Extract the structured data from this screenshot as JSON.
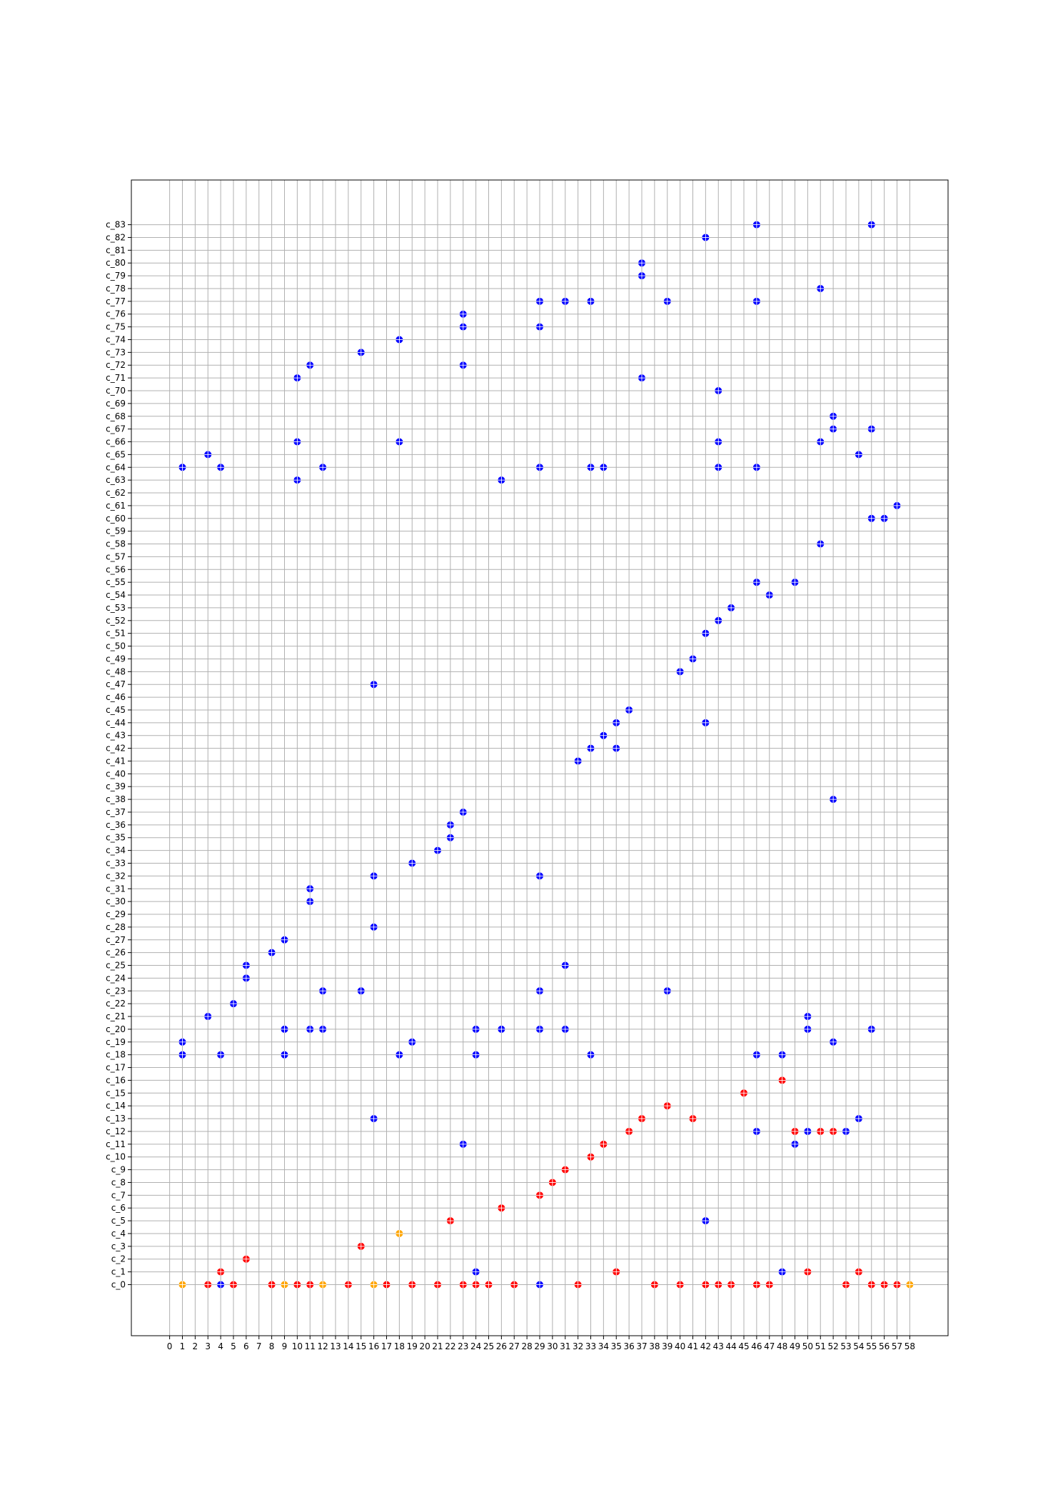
{
  "chart_data": {
    "type": "scatter",
    "title": "",
    "xlabel": "",
    "ylabel": "",
    "grid": true,
    "x_ticks": [
      0,
      1,
      2,
      3,
      4,
      5,
      6,
      7,
      8,
      9,
      10,
      11,
      12,
      13,
      14,
      15,
      16,
      17,
      18,
      19,
      20,
      21,
      22,
      23,
      24,
      25,
      26,
      27,
      28,
      29,
      30,
      31,
      32,
      33,
      34,
      35,
      36,
      37,
      38,
      39,
      40,
      41,
      42,
      43,
      44,
      45,
      46,
      47,
      48,
      49,
      50,
      51,
      52,
      53,
      54,
      55,
      56,
      57,
      58
    ],
    "y_categories": [
      "c_0",
      "c_1",
      "c_2",
      "c_3",
      "c_4",
      "c_5",
      "c_6",
      "c_7",
      "c_8",
      "c_9",
      "c_10",
      "c_11",
      "c_12",
      "c_13",
      "c_14",
      "c_15",
      "c_16",
      "c_17",
      "c_18",
      "c_19",
      "c_20",
      "c_21",
      "c_22",
      "c_23",
      "c_24",
      "c_25",
      "c_26",
      "c_27",
      "c_28",
      "c_29",
      "c_30",
      "c_31",
      "c_32",
      "c_33",
      "c_34",
      "c_35",
      "c_36",
      "c_37",
      "c_38",
      "c_39",
      "c_40",
      "c_41",
      "c_42",
      "c_43",
      "c_44",
      "c_45",
      "c_46",
      "c_47",
      "c_48",
      "c_49",
      "c_50",
      "c_51",
      "c_52",
      "c_53",
      "c_54",
      "c_55",
      "c_56",
      "c_57",
      "c_58",
      "c_59",
      "c_60",
      "c_61",
      "c_62",
      "c_63",
      "c_64",
      "c_65",
      "c_66",
      "c_67",
      "c_68",
      "c_69",
      "c_70",
      "c_71",
      "c_72",
      "c_73",
      "c_74",
      "c_75",
      "c_76",
      "c_77",
      "c_78",
      "c_79",
      "c_80",
      "c_81",
      "c_82",
      "c_83"
    ],
    "xlim": [
      -3,
      61
    ],
    "ylim": [
      -4,
      86.5
    ],
    "series": [
      {
        "color": "#ffa500",
        "points": [
          [
            1,
            0
          ],
          [
            9,
            0
          ],
          [
            12,
            0
          ],
          [
            16,
            0
          ],
          [
            58,
            0
          ],
          [
            18,
            4
          ]
        ]
      },
      {
        "color": "#ff0000",
        "points": [
          [
            3,
            0
          ],
          [
            5,
            0
          ],
          [
            8,
            0
          ],
          [
            10,
            0
          ],
          [
            11,
            0
          ],
          [
            14,
            0
          ],
          [
            17,
            0
          ],
          [
            19,
            0
          ],
          [
            21,
            0
          ],
          [
            23,
            0
          ],
          [
            24,
            0
          ],
          [
            25,
            0
          ],
          [
            27,
            0
          ],
          [
            32,
            0
          ],
          [
            38,
            0
          ],
          [
            40,
            0
          ],
          [
            42,
            0
          ],
          [
            43,
            0
          ],
          [
            44,
            0
          ],
          [
            46,
            0
          ],
          [
            47,
            0
          ],
          [
            53,
            0
          ],
          [
            55,
            0
          ],
          [
            56,
            0
          ],
          [
            57,
            0
          ],
          [
            4,
            1
          ],
          [
            35,
            1
          ],
          [
            50,
            1
          ],
          [
            54,
            1
          ],
          [
            6,
            2
          ],
          [
            15,
            3
          ],
          [
            22,
            5
          ],
          [
            26,
            6
          ],
          [
            29,
            7
          ],
          [
            30,
            8
          ],
          [
            31,
            9
          ],
          [
            33,
            10
          ],
          [
            34,
            11
          ],
          [
            36,
            12
          ],
          [
            49,
            12
          ],
          [
            51,
            12
          ],
          [
            52,
            12
          ],
          [
            37,
            13
          ],
          [
            41,
            13
          ],
          [
            39,
            14
          ],
          [
            45,
            15
          ],
          [
            48,
            16
          ]
        ]
      },
      {
        "color": "#0000ff",
        "points": [
          [
            4,
            0
          ],
          [
            29,
            0
          ],
          [
            24,
            1
          ],
          [
            48,
            1
          ],
          [
            42,
            5
          ],
          [
            23,
            11
          ],
          [
            49,
            11
          ],
          [
            46,
            12
          ],
          [
            50,
            12
          ],
          [
            53,
            12
          ],
          [
            16,
            13
          ],
          [
            54,
            13
          ],
          [
            1,
            18
          ],
          [
            4,
            18
          ],
          [
            9,
            18
          ],
          [
            18,
            18
          ],
          [
            24,
            18
          ],
          [
            33,
            18
          ],
          [
            46,
            18
          ],
          [
            48,
            18
          ],
          [
            1,
            19
          ],
          [
            19,
            19
          ],
          [
            52,
            19
          ],
          [
            9,
            20
          ],
          [
            11,
            20
          ],
          [
            12,
            20
          ],
          [
            24,
            20
          ],
          [
            26,
            20
          ],
          [
            29,
            20
          ],
          [
            31,
            20
          ],
          [
            50,
            20
          ],
          [
            55,
            20
          ],
          [
            3,
            21
          ],
          [
            50,
            21
          ],
          [
            5,
            22
          ],
          [
            12,
            23
          ],
          [
            15,
            23
          ],
          [
            29,
            23
          ],
          [
            39,
            23
          ],
          [
            6,
            24
          ],
          [
            6,
            25
          ],
          [
            31,
            25
          ],
          [
            8,
            26
          ],
          [
            9,
            27
          ],
          [
            16,
            28
          ],
          [
            11,
            30
          ],
          [
            11,
            31
          ],
          [
            16,
            32
          ],
          [
            29,
            32
          ],
          [
            19,
            33
          ],
          [
            21,
            34
          ],
          [
            22,
            35
          ],
          [
            22,
            36
          ],
          [
            23,
            37
          ],
          [
            52,
            38
          ],
          [
            32,
            41
          ],
          [
            33,
            42
          ],
          [
            35,
            42
          ],
          [
            34,
            43
          ],
          [
            35,
            44
          ],
          [
            42,
            44
          ],
          [
            36,
            45
          ],
          [
            16,
            47
          ],
          [
            40,
            48
          ],
          [
            41,
            49
          ],
          [
            42,
            51
          ],
          [
            43,
            52
          ],
          [
            44,
            53
          ],
          [
            47,
            54
          ],
          [
            46,
            55
          ],
          [
            49,
            55
          ],
          [
            51,
            58
          ],
          [
            55,
            60
          ],
          [
            56,
            60
          ],
          [
            57,
            61
          ],
          [
            10,
            63
          ],
          [
            26,
            63
          ],
          [
            1,
            64
          ],
          [
            4,
            64
          ],
          [
            12,
            64
          ],
          [
            29,
            64
          ],
          [
            33,
            64
          ],
          [
            34,
            64
          ],
          [
            43,
            64
          ],
          [
            46,
            64
          ],
          [
            3,
            65
          ],
          [
            54,
            65
          ],
          [
            10,
            66
          ],
          [
            18,
            66
          ],
          [
            43,
            66
          ],
          [
            51,
            66
          ],
          [
            52,
            67
          ],
          [
            55,
            67
          ],
          [
            52,
            68
          ],
          [
            43,
            70
          ],
          [
            10,
            71
          ],
          [
            37,
            71
          ],
          [
            11,
            72
          ],
          [
            23,
            72
          ],
          [
            15,
            73
          ],
          [
            18,
            74
          ],
          [
            23,
            75
          ],
          [
            29,
            75
          ],
          [
            23,
            76
          ],
          [
            29,
            77
          ],
          [
            31,
            77
          ],
          [
            33,
            77
          ],
          [
            39,
            77
          ],
          [
            46,
            77
          ],
          [
            51,
            78
          ],
          [
            37,
            79
          ],
          [
            37,
            80
          ],
          [
            42,
            82
          ],
          [
            46,
            83
          ],
          [
            55,
            83
          ]
        ]
      }
    ]
  }
}
